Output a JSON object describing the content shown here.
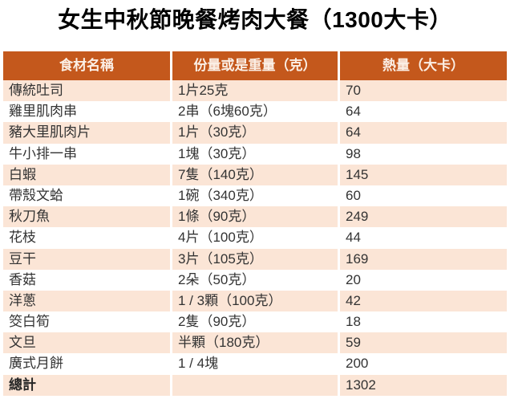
{
  "page": {
    "title": "女生中秋節晚餐烤肉大餐（1300大卡）"
  },
  "colors": {
    "header_bg": "#C4581C",
    "header_text": "#FBEFE5",
    "band_bg": "#FBE5D6",
    "body_text": "#333333",
    "title_text": "#000000"
  },
  "chart_data": {
    "type": "table",
    "title": "女生中秋節晚餐烤肉大餐（1300大卡）",
    "columns": [
      "食材名稱",
      "份量或是重量（克）",
      "熱量（大卡）"
    ],
    "rows": [
      [
        "傳統吐司",
        "1片25克",
        70
      ],
      [
        "雞里肌肉串",
        "2串（6塊60克）",
        64
      ],
      [
        "豬大里肌肉片",
        "1片（30克）",
        64
      ],
      [
        "牛小排一串",
        "1塊（30克）",
        98
      ],
      [
        "白蝦",
        "7隻（140克）",
        145
      ],
      [
        "帶殼文蛤",
        "1碗（340克）",
        60
      ],
      [
        "秋刀魚",
        "1條（90克）",
        249
      ],
      [
        "花枝",
        "4片（100克）",
        44
      ],
      [
        "豆干",
        "3片（105克）",
        169
      ],
      [
        "香菇",
        "2朵（50克）",
        20
      ],
      [
        "洋蔥",
        "1 / 3顆（100克）",
        42
      ],
      [
        "筊白筍",
        "2隻（90克）",
        18
      ],
      [
        "文旦",
        "半顆（180克）",
        59
      ],
      [
        "廣式月餅",
        "1 / 4塊",
        200
      ],
      [
        "總計",
        "",
        1302
      ]
    ]
  },
  "table": {
    "headers": {
      "name": "食材名稱",
      "amount": "份量或是重量（克）",
      "kcal": "熱量（大卡）"
    },
    "rows": [
      {
        "name": "傳統吐司",
        "amount": "1片25克",
        "kcal": "70"
      },
      {
        "name": "雞里肌肉串",
        "amount": "2串（6塊60克）",
        "kcal": "64"
      },
      {
        "name": "豬大里肌肉片",
        "amount": "1片（30克）",
        "kcal": "64"
      },
      {
        "name": "牛小排一串",
        "amount": "1塊（30克）",
        "kcal": "98"
      },
      {
        "name": "白蝦",
        "amount": "7隻（140克）",
        "kcal": "145"
      },
      {
        "name": "帶殼文蛤",
        "amount": "1碗（340克）",
        "kcal": "60"
      },
      {
        "name": "秋刀魚",
        "amount": "1條（90克）",
        "kcal": "249"
      },
      {
        "name": "花枝",
        "amount": "4片（100克）",
        "kcal": "44"
      },
      {
        "name": "豆干",
        "amount": "3片（105克）",
        "kcal": "169"
      },
      {
        "name": "香菇",
        "amount": "2朵（50克）",
        "kcal": "20"
      },
      {
        "name": "洋蔥",
        "amount": "1 / 3顆（100克）",
        "kcal": "42"
      },
      {
        "name": "筊白筍",
        "amount": "2隻（90克）",
        "kcal": "18"
      },
      {
        "name": "文旦",
        "amount": "半顆（180克）",
        "kcal": "59"
      },
      {
        "name": "廣式月餅",
        "amount": "1 / 4塊",
        "kcal": "200"
      },
      {
        "name": "總計",
        "amount": "",
        "kcal": "1302"
      }
    ]
  }
}
